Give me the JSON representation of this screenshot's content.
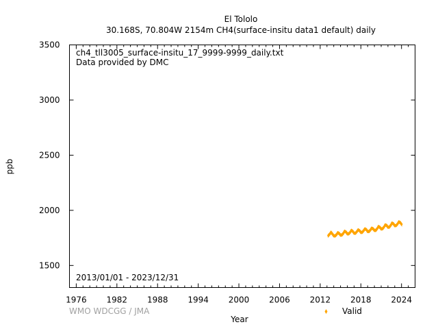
{
  "title_line1": "El Tololo",
  "title_line2": "30.168S, 70.804W 2154m    CH4(surface-insitu data1 default) daily",
  "file_label": "ch4_tll3005_surface-insitu_17_9999-9999_daily.txt",
  "provider_label": "Data provided by DMC",
  "date_range_label": "2013/01/01 - 2023/12/31",
  "footer_credit": "WMO WDCGG / JMA",
  "colors": {
    "series": "#ffa500"
  },
  "chart_data": {
    "type": "scatter",
    "title": "El Tololo",
    "subtitle": "30.168S, 70.804W 2154m    CH4(surface-insitu data1 default) daily",
    "xlabel": "Year",
    "ylabel": "ppb",
    "xlim": [
      1975,
      2026
    ],
    "ylim": [
      1300,
      3500
    ],
    "x_ticks": [
      1976,
      1982,
      1988,
      1994,
      2000,
      2006,
      2012,
      2018,
      2024
    ],
    "y_ticks": [
      1500,
      2000,
      2500,
      3000,
      3500
    ],
    "x_minor_ticks": true,
    "grid": false,
    "legend_position": "bottom-right",
    "series": [
      {
        "name": "Valid",
        "color": "#ffa500",
        "x": [
          2013.2,
          2013.4,
          2013.6,
          2013.8,
          2014.0,
          2014.2,
          2014.4,
          2014.6,
          2014.8,
          2015.0,
          2015.2,
          2015.4,
          2015.6,
          2015.8,
          2016.0,
          2016.2,
          2016.4,
          2016.6,
          2016.8,
          2017.0,
          2017.2,
          2017.4,
          2017.6,
          2017.8,
          2018.0,
          2018.2,
          2018.4,
          2018.6,
          2018.8,
          2019.0,
          2019.2,
          2019.4,
          2019.6,
          2019.8,
          2020.0,
          2020.2,
          2020.4,
          2020.6,
          2020.8,
          2021.0,
          2021.2,
          2021.4,
          2021.6,
          2021.8,
          2022.0,
          2022.2,
          2022.4,
          2022.6,
          2022.8,
          2023.0,
          2023.2,
          2023.4,
          2023.6,
          2023.8,
          2024.0
        ],
        "y": [
          1772,
          1784,
          1801,
          1786,
          1769,
          1768,
          1779,
          1797,
          1790,
          1775,
          1777,
          1790,
          1810,
          1804,
          1787,
          1787,
          1799,
          1818,
          1810,
          1793,
          1792,
          1806,
          1823,
          1816,
          1800,
          1801,
          1815,
          1832,
          1826,
          1808,
          1808,
          1821,
          1838,
          1833,
          1818,
          1818,
          1833,
          1853,
          1846,
          1831,
          1833,
          1848,
          1868,
          1863,
          1847,
          1848,
          1864,
          1884,
          1878,
          1861,
          1862,
          1876,
          1895,
          1890,
          1874
        ],
        "y_spread": 20
      }
    ]
  }
}
